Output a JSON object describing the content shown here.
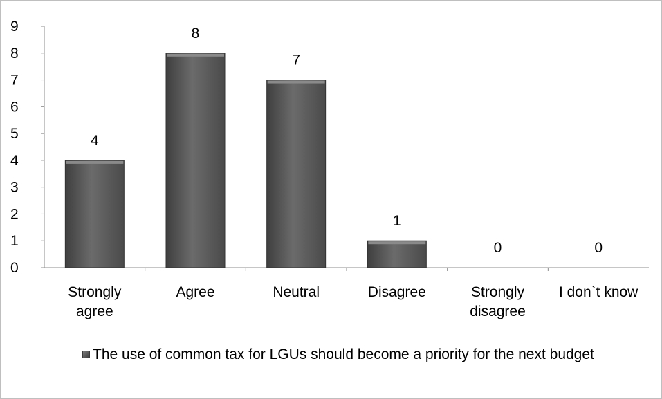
{
  "chart_data": {
    "type": "bar",
    "categories": [
      "Strongly agree",
      "Agree",
      "Neutral",
      "Disagree",
      "Strongly disagree",
      "I don`t know"
    ],
    "category_lines": [
      [
        "Strongly",
        "agree"
      ],
      [
        "Agree"
      ],
      [
        "Neutral"
      ],
      [
        "Disagree"
      ],
      [
        "Strongly",
        "disagree"
      ],
      [
        "I don`t know"
      ]
    ],
    "series": [
      {
        "name": "The use of common tax for LGUs should become a priority for the next budget",
        "values": [
          4,
          8,
          7,
          1,
          0,
          0
        ]
      }
    ],
    "data_labels": [
      "4",
      "8",
      "7",
      "1",
      "0",
      "0"
    ],
    "ylim": [
      0,
      9
    ],
    "yticks": [
      "0",
      "1",
      "2",
      "3",
      "4",
      "5",
      "6",
      "7",
      "8",
      "9"
    ],
    "grid": false,
    "legend_position": "bottom",
    "bar_color": "#595959"
  }
}
